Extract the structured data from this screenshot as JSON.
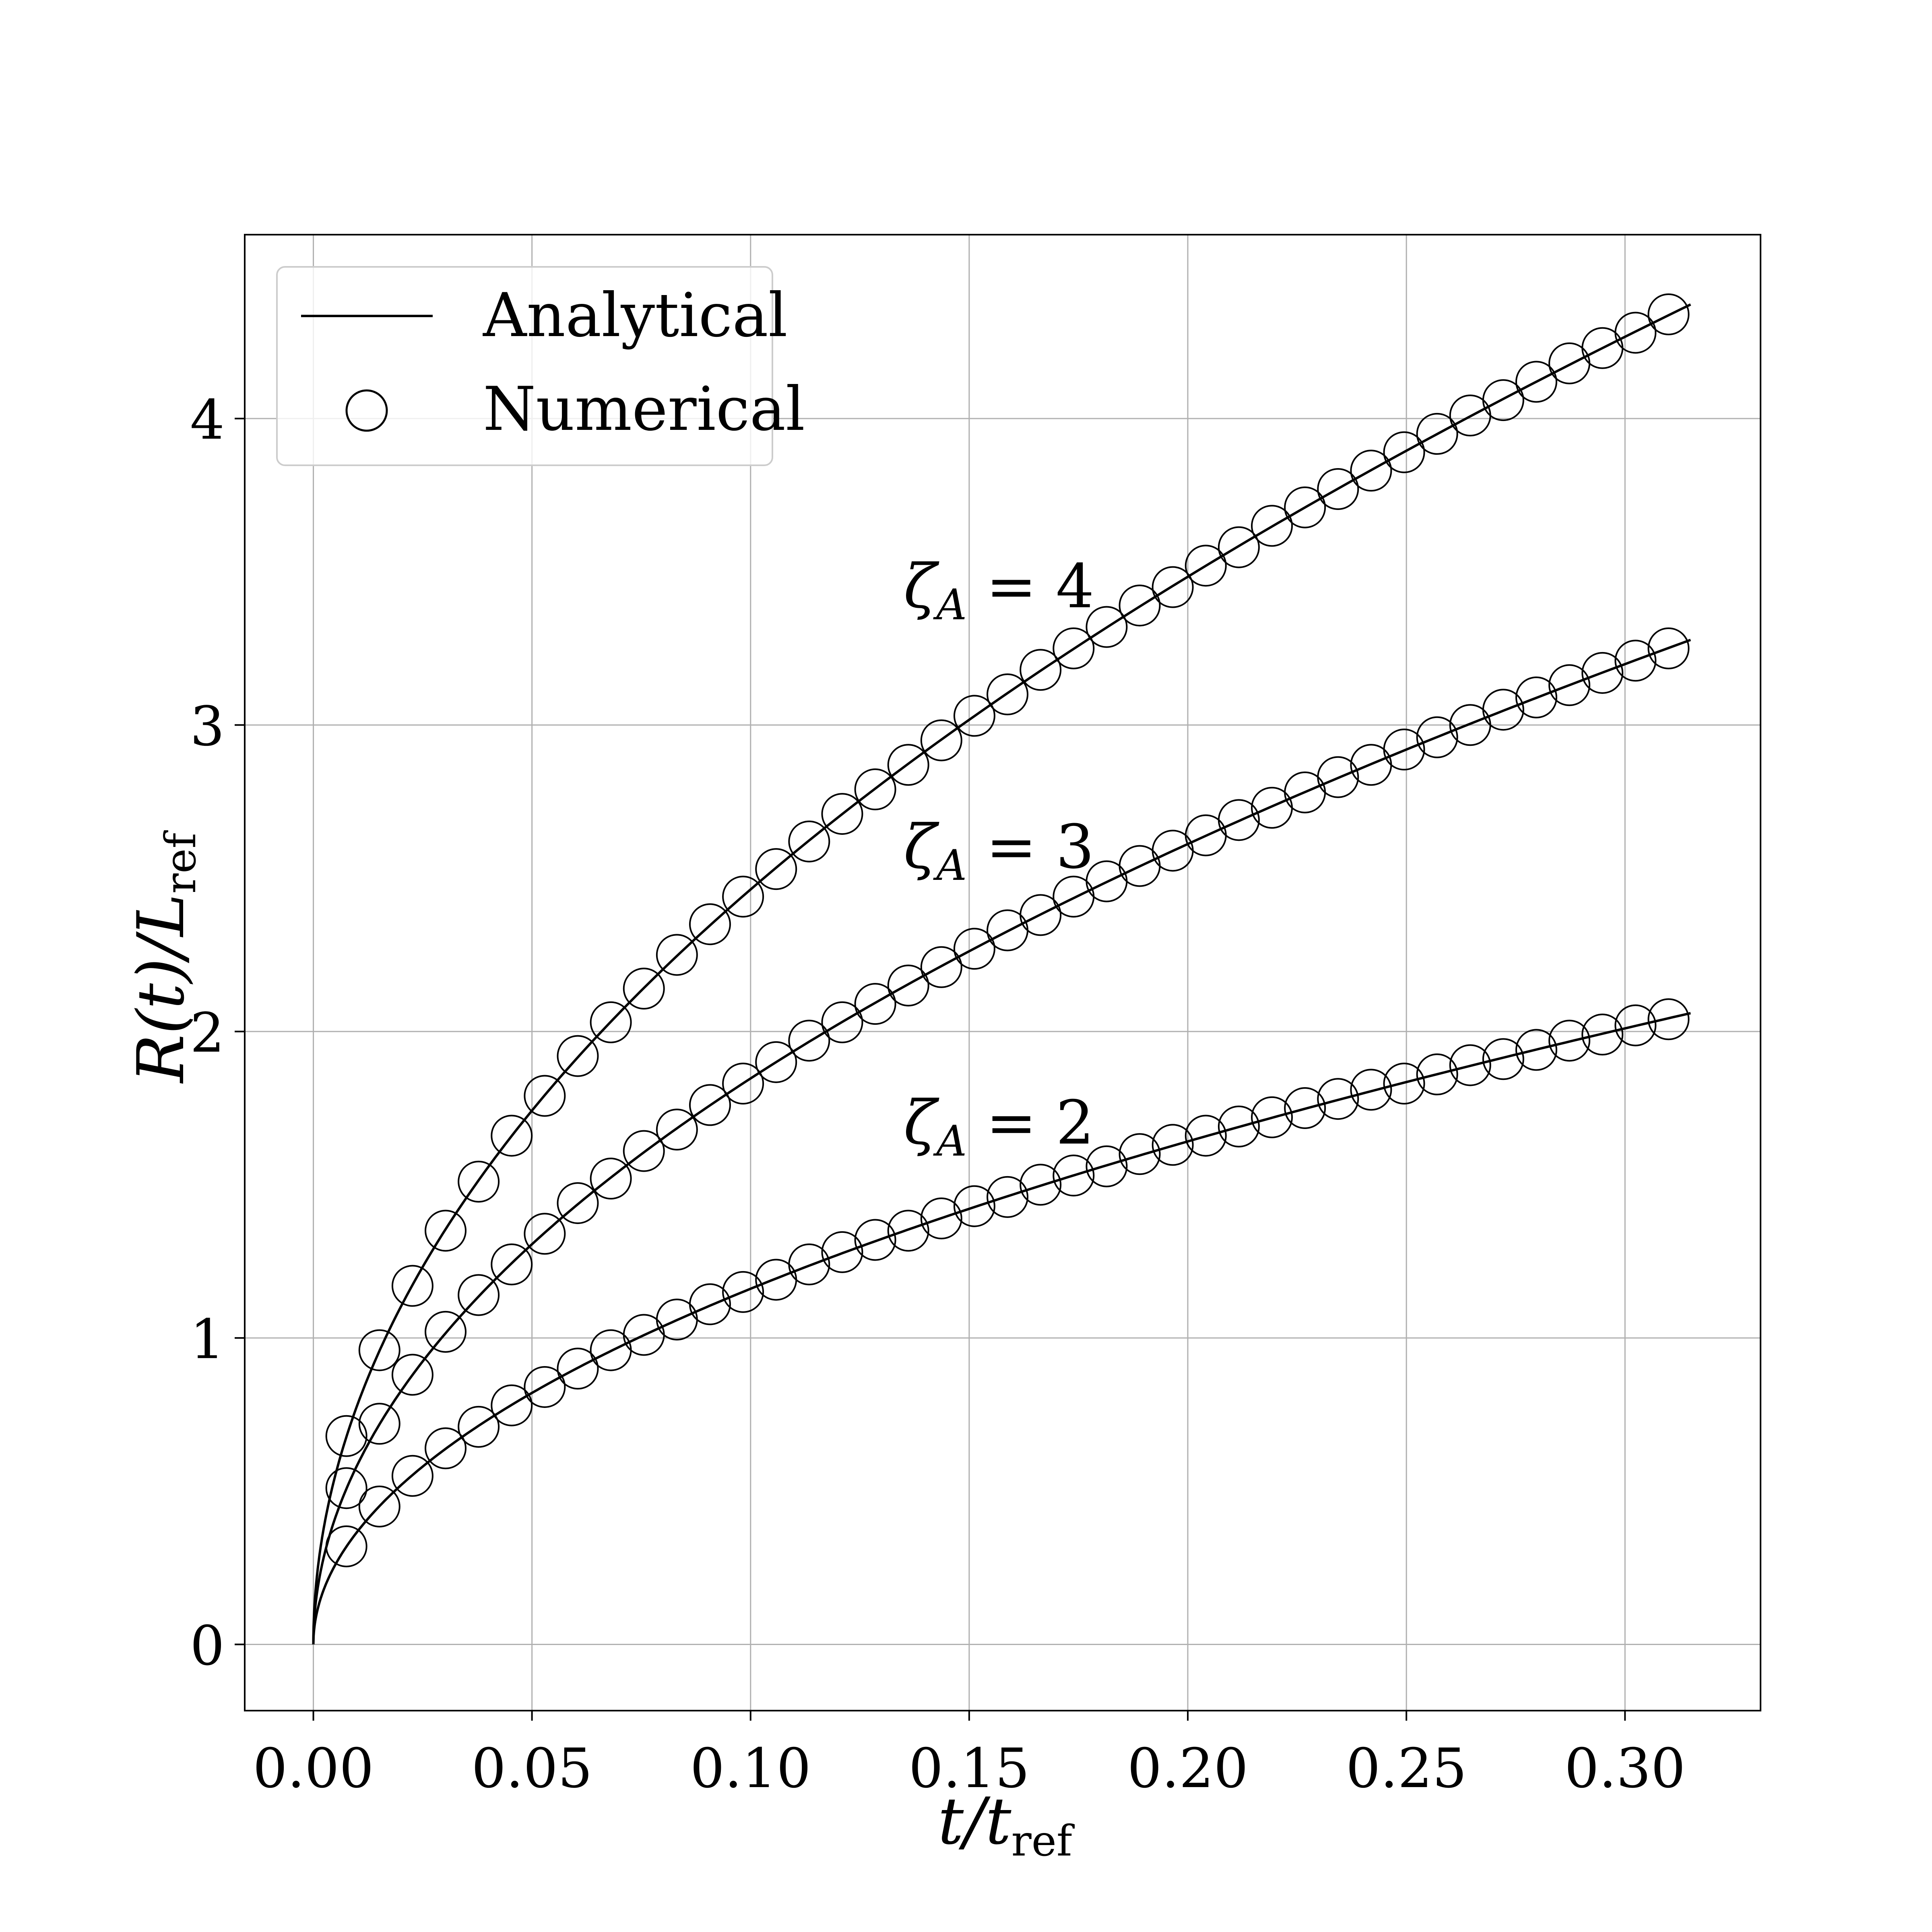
{
  "chart_data": {
    "type": "line",
    "xlabel": "t/t_ref",
    "ylabel": "R(t)/L_ref",
    "xlim": [
      -0.0157,
      0.331
    ],
    "ylim": [
      -0.216,
      4.6
    ],
    "grid": true,
    "xticks": [
      0,
      0.05,
      0.1,
      0.15,
      0.2,
      0.25,
      0.3
    ],
    "xtick_labels": [
      "0.00",
      "0.05",
      "0.10",
      "0.15",
      "0.20",
      "0.25",
      "0.30"
    ],
    "yticks": [
      0,
      1,
      2,
      3,
      4
    ],
    "ytick_labels": [
      "0",
      "1",
      "2",
      "3",
      "4"
    ],
    "legend": {
      "placement": "top-left",
      "entries": [
        "Analytical",
        "Numerical"
      ]
    },
    "t": [
      0.00756,
      0.01512,
      0.02268,
      0.03024,
      0.0378,
      0.04536,
      0.05292,
      0.06048,
      0.06804,
      0.0756,
      0.08316,
      0.09072,
      0.09828,
      0.10584,
      0.1134,
      0.12096,
      0.12852,
      0.13608,
      0.14364,
      0.1512,
      0.15876,
      0.16632,
      0.17388,
      0.18144,
      0.189,
      0.19656,
      0.20412,
      0.21168,
      0.21924,
      0.2268,
      0.23436,
      0.24192,
      0.24948,
      0.25704,
      0.2646,
      0.27216,
      0.27972,
      0.28728,
      0.29484,
      0.3024,
      0.30996
    ],
    "series": [
      {
        "name": "ζA = 4",
        "label_text": "ζ",
        "label_sub": "A",
        "label_rest": " = 4",
        "label_pos": [
          0.135,
          3.45
        ],
        "analytical_coefficient": 7.79,
        "analytical_tmax": 0.315,
        "numerical": [
          0.68,
          0.96,
          1.17,
          1.35,
          1.51,
          1.66,
          1.79,
          1.92,
          2.03,
          2.14,
          2.25,
          2.35,
          2.44,
          2.53,
          2.62,
          2.71,
          2.79,
          2.87,
          2.95,
          3.03,
          3.1,
          3.18,
          3.25,
          3.32,
          3.39,
          3.45,
          3.52,
          3.58,
          3.65,
          3.71,
          3.77,
          3.83,
          3.89,
          3.95,
          4.01,
          4.06,
          4.12,
          4.18,
          4.23,
          4.28,
          4.34
        ]
      },
      {
        "name": "ζA = 3",
        "label_text": "ζ",
        "label_sub": "A",
        "label_rest": " = 3",
        "label_pos": [
          0.135,
          2.6
        ],
        "analytical_coefficient": 5.84,
        "analytical_tmax": 0.315,
        "numerical": [
          0.51,
          0.72,
          0.88,
          1.02,
          1.14,
          1.24,
          1.34,
          1.44,
          1.52,
          1.61,
          1.68,
          1.76,
          1.83,
          1.9,
          1.97,
          2.03,
          2.09,
          2.15,
          2.21,
          2.27,
          2.33,
          2.38,
          2.44,
          2.49,
          2.54,
          2.59,
          2.64,
          2.69,
          2.73,
          2.78,
          2.83,
          2.87,
          2.92,
          2.96,
          3.0,
          3.05,
          3.09,
          3.13,
          3.17,
          3.21,
          3.25
        ]
      },
      {
        "name": "ζA = 2",
        "label_text": "ζ",
        "label_sub": "A",
        "label_rest": " = 2",
        "label_pos": [
          0.135,
          1.7
        ],
        "analytical_coefficient": 3.67,
        "analytical_tmax": 0.315,
        "numerical": [
          0.32,
          0.45,
          0.55,
          0.64,
          0.71,
          0.78,
          0.84,
          0.9,
          0.96,
          1.01,
          1.06,
          1.11,
          1.15,
          1.19,
          1.24,
          1.28,
          1.32,
          1.35,
          1.39,
          1.43,
          1.46,
          1.5,
          1.53,
          1.56,
          1.6,
          1.63,
          1.66,
          1.69,
          1.72,
          1.75,
          1.78,
          1.81,
          1.83,
          1.86,
          1.89,
          1.91,
          1.94,
          1.97,
          1.99,
          2.02,
          2.04
        ]
      }
    ]
  },
  "labels": {
    "x_main": "t/t",
    "x_sub": "ref",
    "y_main": "R(t)/L",
    "y_sub": "ref"
  }
}
